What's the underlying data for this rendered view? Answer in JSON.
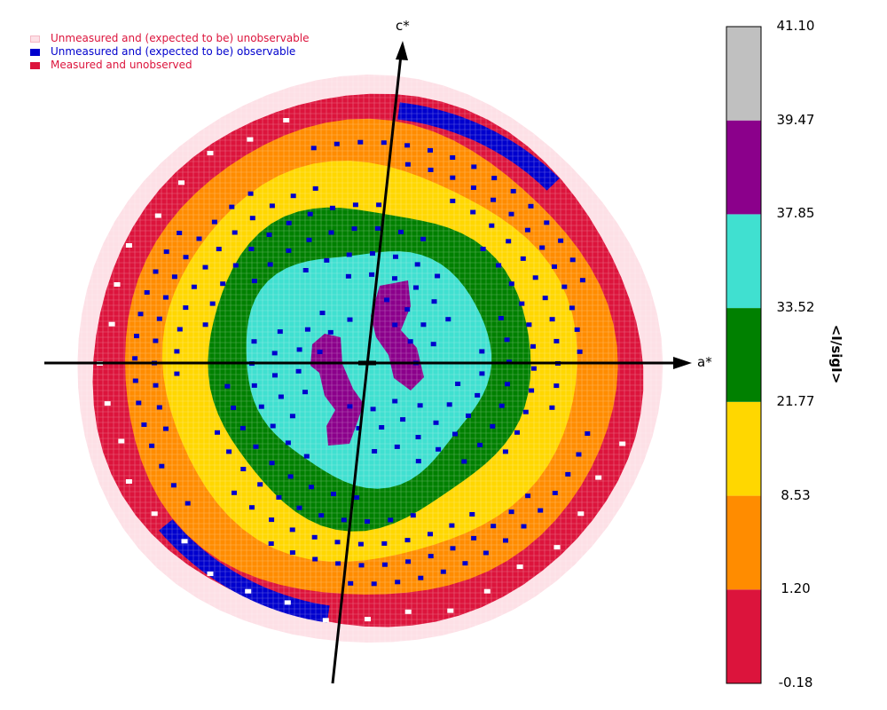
{
  "chart_data": {
    "type": "heatmap",
    "title": "",
    "axes": {
      "horizontal_label": "a*",
      "vertical_label": "c*"
    },
    "colorbar": {
      "label": "<I/sigI>",
      "ticks": [
        "-0.18",
        "1.20",
        "8.53",
        "21.77",
        "33.52",
        "37.85",
        "39.47",
        "41.10"
      ],
      "bins": [
        {
          "low": -0.18,
          "high": 1.2,
          "color": "#dc143c"
        },
        {
          "low": 1.2,
          "high": 8.53,
          "color": "#ff8c00"
        },
        {
          "low": 8.53,
          "high": 21.77,
          "color": "#ffd700"
        },
        {
          "low": 21.77,
          "high": 33.52,
          "color": "#008000"
        },
        {
          "low": 33.52,
          "high": 37.85,
          "color": "#40e0d0"
        },
        {
          "low": 37.85,
          "high": 39.47,
          "color": "#8b008b"
        },
        {
          "low": 39.47,
          "high": 41.1,
          "color": "#c0c0c0"
        }
      ]
    },
    "legend": [
      {
        "label": "Unmeasured and (expected to be) unobservable",
        "color": "#dc143c",
        "swatch": "#fde0e6"
      },
      {
        "label": "Unmeasured and (expected to be) observable",
        "color": "#0000cd",
        "swatch": "#0000cd"
      },
      {
        "label": "Measured and unobserved",
        "color": "#dc143c",
        "swatch": "#dc143c"
      }
    ],
    "colors": {
      "unobservable": "#fde0e6",
      "observable_unmeasured": "#0000cd",
      "unobserved": "#ffffff"
    }
  }
}
